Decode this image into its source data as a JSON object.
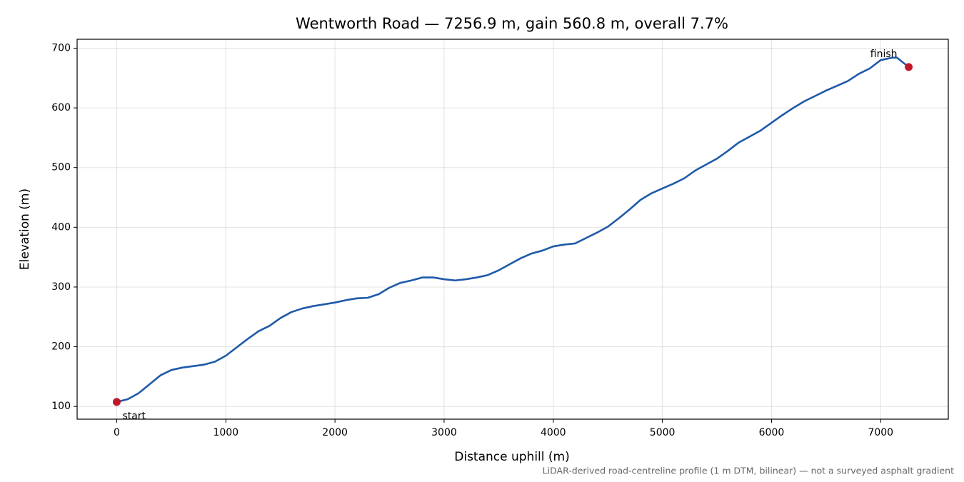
{
  "chart_data": {
    "type": "line",
    "title": "Wentworth Road — 7256.9 m, gain 560.8 m, overall 7.7%",
    "x_label": "Distance uphill (m)",
    "y_label": "Elevation (m)",
    "footnote": "LiDAR-derived road-centreline profile (1 m DTM, bilinear) — not a surveyed asphalt gradient",
    "x": [
      0,
      100,
      200,
      300,
      400,
      500,
      600,
      800,
      900,
      1000,
      1100,
      1200,
      1300,
      1400,
      1500,
      1600,
      1700,
      1800,
      2000,
      2100,
      2200,
      2300,
      2400,
      2500,
      2600,
      2700,
      2800,
      2900,
      3000,
      3100,
      3200,
      3300,
      3400,
      3500,
      3600,
      3700,
      3800,
      3900,
      4000,
      4100,
      4200,
      4300,
      4400,
      4500,
      4600,
      4700,
      4800,
      4900,
      5000,
      5100,
      5200,
      5300,
      5400,
      5500,
      5600,
      5700,
      5800,
      5900,
      6000,
      6100,
      6200,
      6300,
      6400,
      6500,
      6600,
      6700,
      6800,
      6900,
      7000,
      7100,
      7150,
      7256.9
    ],
    "values": [
      107.6,
      112,
      122,
      137,
      152,
      161,
      165,
      170,
      175,
      185,
      199,
      213,
      226,
      235,
      248,
      258,
      264,
      268,
      274,
      278,
      281,
      282,
      288,
      299,
      307,
      311,
      316,
      316,
      313,
      311,
      313,
      316,
      320,
      328,
      338,
      348,
      356,
      361,
      368,
      371,
      373,
      382,
      391,
      401,
      415,
      430,
      446,
      457,
      465,
      473,
      482,
      495,
      505,
      515,
      528,
      542,
      552,
      562,
      575,
      588,
      600,
      611,
      620,
      629,
      637,
      645,
      657,
      666,
      680,
      684,
      684,
      668.4
    ],
    "color": "#1f5aa8",
    "marker_color": "#c0182a",
    "annotations": [
      "start",
      "finish"
    ],
    "xlim": [
      -362.8,
      7619.7
    ],
    "ylim": [
      78.7,
      714.9
    ],
    "xticks": [
      0,
      1000,
      2000,
      3000,
      4000,
      5000,
      6000,
      7000
    ],
    "yticks": [
      100,
      200,
      300,
      400,
      500,
      600,
      700
    ],
    "grid": true
  }
}
